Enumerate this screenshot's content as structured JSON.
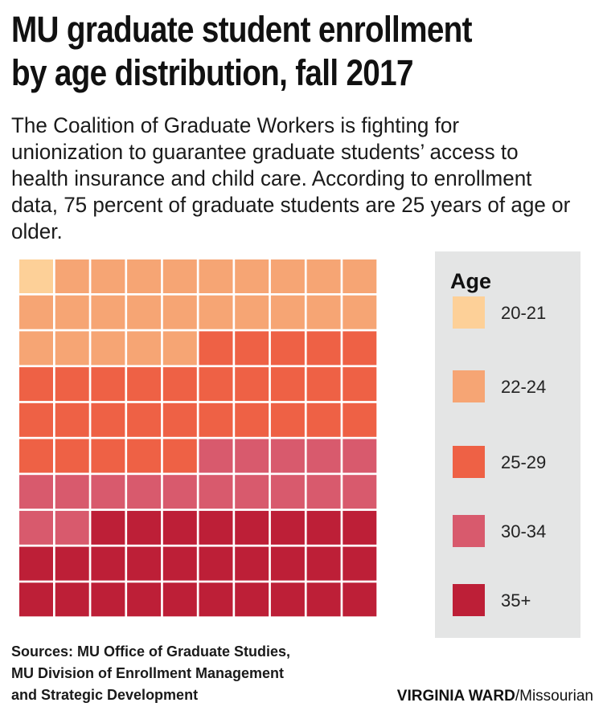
{
  "title_lines": [
    "MU graduate student enrollment",
    "by age distribution, fall 2017"
  ],
  "subtitle": "The Coalition of Graduate Workers is fighting for unionization to guarantee graduate students’ access to health insurance and child care. According to enrollment data, 75 percent of graduate students are 25 years of age or older.",
  "colors": {
    "20-21": "#fdd098",
    "22-24": "#f6a574",
    "25-29": "#ee6145",
    "30-34": "#d85a6d",
    "35+": "#bd1f37",
    "legend_bg": "#e4e5e5"
  },
  "legend": {
    "title": "Age",
    "items": [
      {
        "label": "20-21",
        "color": "#fdd098"
      },
      {
        "label": "22-24",
        "color": "#f6a574"
      },
      {
        "label": "25-29",
        "color": "#ee6145"
      },
      {
        "label": "30-34",
        "color": "#d85a6d"
      },
      {
        "label": "35+",
        "color": "#bd1f37"
      }
    ]
  },
  "chart_data": {
    "type": "waffle",
    "grid": {
      "rows": 10,
      "cols": 10
    },
    "unit": "percent",
    "categories": [
      "20-21",
      "22-24",
      "25-29",
      "30-34",
      "35+"
    ],
    "values": [
      1,
      24,
      30,
      17,
      28
    ]
  },
  "sources": {
    "lines": [
      "Sources: MU Office of Graduate Studies,",
      "MU Division of Enrollment Management",
      "and Strategic Development"
    ]
  },
  "credit": {
    "name": "VIRGINIA WARD",
    "outlet": "/Missourian"
  }
}
